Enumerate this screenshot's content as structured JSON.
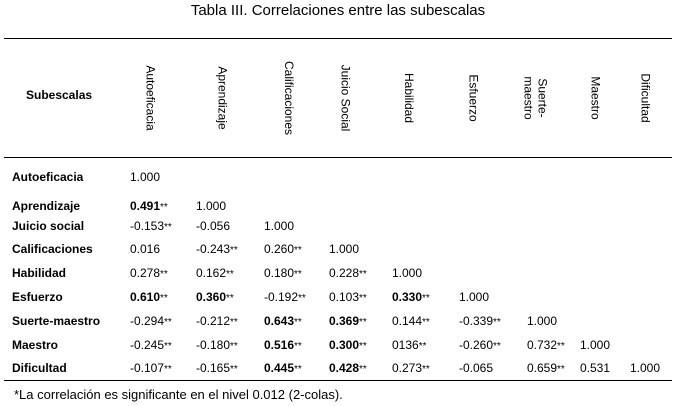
{
  "title": "Tabla III. Correlaciones entre las subescalas",
  "corner_label": "Subescalas",
  "columns": [
    [
      "Autoeficacia"
    ],
    [
      "Aprendizaje"
    ],
    [
      "Calificaciones"
    ],
    [
      "Juicio Social"
    ],
    [
      "Habilidad"
    ],
    [
      "Esfuerzo"
    ],
    [
      "Suerte-",
      "maestro"
    ],
    [
      "Maestro"
    ],
    [
      "Dificultad"
    ]
  ],
  "rows": [
    {
      "label": "Autoeficacia",
      "cells": [
        {
          "v": "1.000",
          "s": "",
          "b": false
        }
      ]
    },
    {
      "label": "Aprendizaje",
      "cells": [
        {
          "v": "0.491",
          "s": "**",
          "b": true
        },
        {
          "v": "1.000",
          "s": "",
          "b": false
        }
      ]
    },
    {
      "label": "Juicio social",
      "cells": [
        {
          "v": "-0.153",
          "s": "**",
          "b": false
        },
        {
          "v": "-0.056",
          "s": "",
          "b": false
        },
        {
          "v": "1.000",
          "s": "",
          "b": false
        }
      ]
    },
    {
      "label": "Calificaciones",
      "cells": [
        {
          "v": "0.016",
          "s": "",
          "b": false
        },
        {
          "v": "-0.243",
          "s": "**",
          "b": false
        },
        {
          "v": "0.260",
          "s": "**",
          "b": false
        },
        {
          "v": "1.000",
          "s": "",
          "b": false
        }
      ]
    },
    {
      "label": "Habilidad",
      "cells": [
        {
          "v": "0.278",
          "s": "**",
          "b": false
        },
        {
          "v": "0.162",
          "s": "**",
          "b": false
        },
        {
          "v": "0.180",
          "s": "**",
          "b": false
        },
        {
          "v": "0.228",
          "s": "**",
          "b": false
        },
        {
          "v": "1.000",
          "s": "",
          "b": false
        }
      ]
    },
    {
      "label": "Esfuerzo",
      "cells": [
        {
          "v": "0.610",
          "s": "**",
          "b": true
        },
        {
          "v": "0.360",
          "s": "**",
          "b": true
        },
        {
          "v": "-0.192",
          "s": "**",
          "b": false
        },
        {
          "v": "0.103",
          "s": "**",
          "b": false
        },
        {
          "v": "0.330",
          "s": "**",
          "b": true
        },
        {
          "v": "1.000",
          "s": "",
          "b": false
        }
      ]
    },
    {
      "label": "Suerte-maestro",
      "cells": [
        {
          "v": "-0.294",
          "s": "**",
          "b": false
        },
        {
          "v": "-0.212",
          "s": "**",
          "b": false
        },
        {
          "v": "0.643",
          "s": "**",
          "b": true
        },
        {
          "v": "0.369",
          "s": "**",
          "b": true
        },
        {
          "v": "0.144",
          "s": "**",
          "b": false
        },
        {
          "v": "-0.339",
          "s": "**",
          "b": false
        },
        {
          "v": "1.000",
          "s": "",
          "b": false
        }
      ]
    },
    {
      "label": "Maestro",
      "cells": [
        {
          "v": "-0.245",
          "s": "**",
          "b": false
        },
        {
          "v": "-0.180",
          "s": "**",
          "b": false
        },
        {
          "v": "0.516",
          "s": "**",
          "b": true
        },
        {
          "v": "0.300",
          "s": "**",
          "b": true
        },
        {
          "v": "0136",
          "s": "**",
          "b": false
        },
        {
          "v": "-0.260",
          "s": "**",
          "b": false
        },
        {
          "v": "0.732",
          "s": "**",
          "b": false
        },
        {
          "v": "1.000",
          "s": "",
          "b": false
        }
      ]
    },
    {
      "label": "Dificultad",
      "cells": [
        {
          "v": "-0.107",
          "s": "**",
          "b": false
        },
        {
          "v": "-0.165",
          "s": "**",
          "b": false
        },
        {
          "v": "0.445",
          "s": "**",
          "b": true
        },
        {
          "v": "0.428",
          "s": "**",
          "b": true
        },
        {
          "v": "0.273",
          "s": "**",
          "b": false
        },
        {
          "v": "-0.065",
          "s": "",
          "b": false
        },
        {
          "v": "0.659",
          "s": "**",
          "b": false
        },
        {
          "v": "0.531",
          "s": "",
          "b": false
        },
        {
          "v": "1.000",
          "s": "",
          "b": false
        }
      ]
    }
  ],
  "footnote": "*La correlación es significante en el nivel 0.012 (2-colas)."
}
